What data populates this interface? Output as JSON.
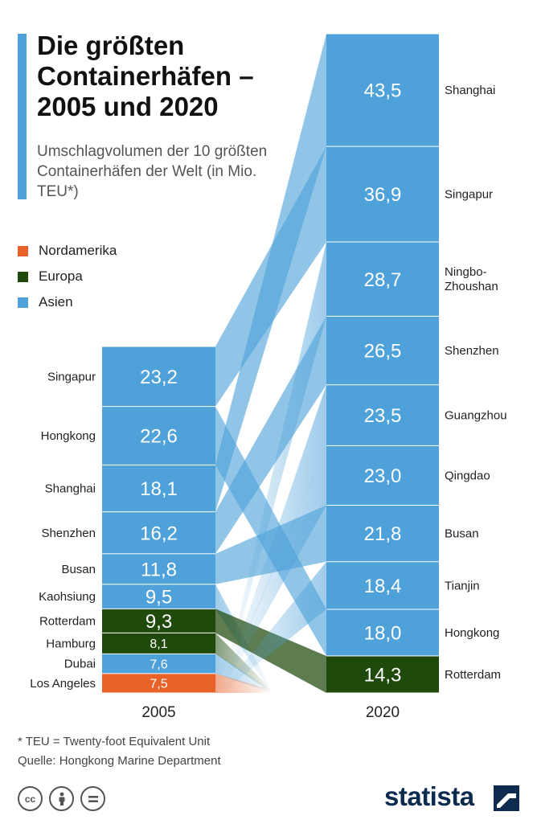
{
  "header": {
    "title": "Die größten Containerhäfen – 2005 und 2020",
    "subtitle": "Umschlagvolumen der 10 größten Containerhäfen der Welt (in Mio. TEU*)"
  },
  "legend": [
    {
      "label": "Nordamerika",
      "color": "#e8622a"
    },
    {
      "label": "Europa",
      "color": "#1f4a0b"
    },
    {
      "label": "Asien",
      "color": "#4ea1d9"
    }
  ],
  "chart_data": {
    "type": "bar",
    "subtype": "stacked-slope",
    "years": [
      "2005",
      "2020"
    ],
    "series": [
      {
        "year": "2005",
        "ports": [
          {
            "name": "Singapur",
            "value": 23.2,
            "label": "23,2",
            "region": "Asien"
          },
          {
            "name": "Hongkong",
            "value": 22.6,
            "label": "22,6",
            "region": "Asien"
          },
          {
            "name": "Shanghai",
            "value": 18.1,
            "label": "18,1",
            "region": "Asien"
          },
          {
            "name": "Shenzhen",
            "value": 16.2,
            "label": "16,2",
            "region": "Asien"
          },
          {
            "name": "Busan",
            "value": 11.8,
            "label": "11,8",
            "region": "Asien"
          },
          {
            "name": "Kaohsiung",
            "value": 9.5,
            "label": "9,5",
            "region": "Asien"
          },
          {
            "name": "Rotterdam",
            "value": 9.3,
            "label": "9,3",
            "region": "Europa"
          },
          {
            "name": "Hamburg",
            "value": 8.1,
            "label": "8,1",
            "region": "Europa"
          },
          {
            "name": "Dubai",
            "value": 7.6,
            "label": "7,6",
            "region": "Asien"
          },
          {
            "name": "Los Angeles",
            "value": 7.5,
            "label": "7,5",
            "region": "Nordamerika"
          }
        ]
      },
      {
        "year": "2020",
        "ports": [
          {
            "name": "Shanghai",
            "value": 43.5,
            "label": "43,5",
            "region": "Asien"
          },
          {
            "name": "Singapur",
            "value": 36.9,
            "label": "36,9",
            "region": "Asien"
          },
          {
            "name": "Ningbo-Zhoushan",
            "lines": [
              "Ningbo-",
              "Zhoushan"
            ],
            "value": 28.7,
            "label": "28,7",
            "region": "Asien"
          },
          {
            "name": "Shenzhen",
            "value": 26.5,
            "label": "26,5",
            "region": "Asien"
          },
          {
            "name": "Guangzhou",
            "value": 23.5,
            "label": "23,5",
            "region": "Asien"
          },
          {
            "name": "Qingdao",
            "value": 23.0,
            "label": "23,0",
            "region": "Asien"
          },
          {
            "name": "Busan",
            "value": 21.8,
            "label": "21,8",
            "region": "Asien"
          },
          {
            "name": "Tianjin",
            "value": 18.4,
            "label": "18,4",
            "region": "Asien"
          },
          {
            "name": "Hongkong",
            "value": 18.0,
            "label": "18,0",
            "region": "Asien"
          },
          {
            "name": "Rotterdam",
            "value": 14.3,
            "label": "14,3",
            "region": "Europa"
          }
        ]
      }
    ]
  },
  "footer": {
    "note": "* TEU = Twenty-foot Equivalent Unit",
    "source": "Quelle: Hongkong Marine Department",
    "brand": "statista"
  },
  "icons": [
    "cc-icon",
    "by-person-icon",
    "nd-equals-icon",
    "statista-logo-icon"
  ]
}
